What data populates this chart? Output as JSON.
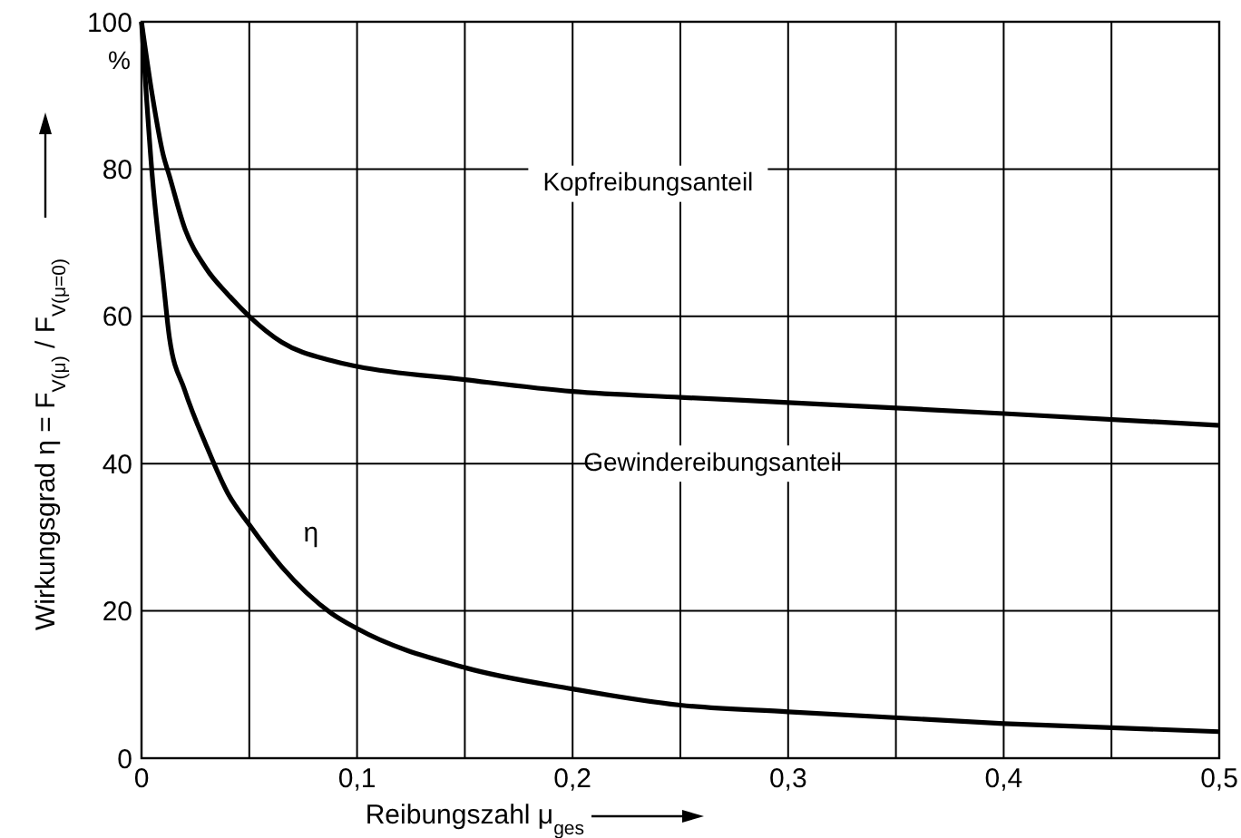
{
  "chart_data": {
    "type": "line",
    "xlabel": "Reibungszahl μ$_{ges}$",
    "ylabel": "Wirkungsgrad  η = F$_{V(μ)}$ / F$_{V(μ=0)}$",
    "x": [
      0,
      0.005,
      0.01,
      0.013,
      0.02,
      0.03,
      0.04,
      0.05,
      0.065,
      0.088,
      0.1,
      0.15,
      0.2,
      0.25,
      0.3,
      0.4,
      0.5
    ],
    "series": [
      {
        "name": "η",
        "color": "#000000",
        "values": [
          100,
          79,
          65,
          57,
          50,
          42.5,
          36,
          31.7,
          26,
          19.7,
          17.6,
          12.3,
          9.4,
          7.2,
          6.3,
          4.7,
          3.6
        ]
      },
      {
        "color": "#000000",
        "values": [
          100,
          90,
          82,
          79,
          72,
          66.5,
          63,
          60,
          56.5,
          54,
          53.2,
          51.4,
          49.8,
          49,
          48.3,
          46.8,
          45.2
        ]
      }
    ],
    "xlim": [
      0,
      0.5
    ],
    "ylim": [
      0,
      100
    ],
    "xticks": [
      {
        "value": 0,
        "label": "0"
      },
      {
        "value": 0.05,
        "label": null
      },
      {
        "value": 0.1,
        "label": "0,1"
      },
      {
        "value": 0.15,
        "label": null
      },
      {
        "value": 0.2,
        "label": "0,2"
      },
      {
        "value": 0.25,
        "label": null
      },
      {
        "value": 0.3,
        "label": "0,3"
      },
      {
        "value": 0.35,
        "label": null
      },
      {
        "value": 0.4,
        "label": "0,4"
      },
      {
        "value": 0.45,
        "label": null
      },
      {
        "value": 0.5,
        "label": "0,5"
      }
    ],
    "yticks": [
      0,
      20,
      40,
      60,
      80,
      100
    ],
    "grid": true,
    "marker": "none",
    "line_style": "solid",
    "annotations": [
      "Kopfreibungsanteil",
      "Gewindereibungsanteil",
      "%"
    ]
  }
}
